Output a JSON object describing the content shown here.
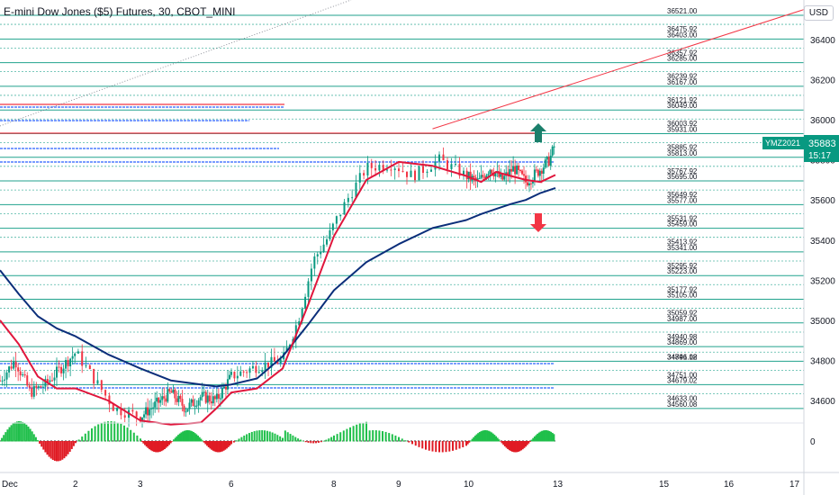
{
  "header": {
    "symbol_title": "E-mini Dow Jones ($5) Futures, 30, CBOT_MINI",
    "currency_button": "USD"
  },
  "price_label": {
    "ticker": "YMZ2021",
    "price": "35883",
    "countdown": "15:17",
    "color": "#089981"
  },
  "colors": {
    "level_line": "#089981",
    "blue_line": "#2962ff",
    "red_line": "#f23645",
    "ema_fast": "#e0163c",
    "ema_slow": "#0b2e7a",
    "candle_up": "#089981",
    "candle_down": "#f23645",
    "osc_up": "#1fbf4a",
    "osc_down": "#e01b24"
  },
  "arrows": {
    "up_icon": "arrow-up-icon",
    "down_icon": "arrow-down-icon"
  },
  "chart_data": {
    "type": "candlestick",
    "title": "E-mini Dow Jones ($5) Futures, 30, CBOT_MINI",
    "ylim": [
      34500,
      36550
    ],
    "y_ticks": [
      {
        "value": 36400,
        "label": "36400"
      },
      {
        "value": 36200,
        "label": "36200"
      },
      {
        "value": 36000,
        "label": "36000"
      },
      {
        "value": 35800,
        "label": "35800"
      },
      {
        "value": 35600,
        "label": "35600"
      },
      {
        "value": 35400,
        "label": "35400"
      },
      {
        "value": 35200,
        "label": "35200"
      },
      {
        "value": 35000,
        "label": "35000"
      },
      {
        "value": 34800,
        "label": "34800"
      },
      {
        "value": 34600,
        "label": "34600"
      }
    ],
    "x_ticks": [
      {
        "day": 0,
        "label": "Dec"
      },
      {
        "day": 2,
        "label": "2"
      },
      {
        "day": 3,
        "label": "3"
      },
      {
        "day": 6,
        "label": "6"
      },
      {
        "day": 8,
        "label": "8"
      },
      {
        "day": 9,
        "label": "9"
      },
      {
        "day": 10,
        "label": "10"
      },
      {
        "day": 13,
        "label": "13"
      },
      {
        "day": 15,
        "label": "15"
      },
      {
        "day": 16,
        "label": "16"
      },
      {
        "day": 17,
        "label": "17"
      }
    ],
    "oscillator_label": "0",
    "levels": [
      {
        "value": 36521.0,
        "label": "36521.00"
      },
      {
        "value": 36475.92,
        "label": "36475.92"
      },
      {
        "value": 36403.0,
        "label": "36403.00"
      },
      {
        "value": 36357.92,
        "label": "36357.92"
      },
      {
        "value": 36285.0,
        "label": "36285.00"
      },
      {
        "value": 36239.92,
        "label": "36239.92"
      },
      {
        "value": 36167.0,
        "label": "36167.00"
      },
      {
        "value": 36121.92,
        "label": "36121.92"
      },
      {
        "value": 36049.0,
        "label": "36049.00"
      },
      {
        "value": 36003.92,
        "label": "36003.92"
      },
      {
        "value": 35931.0,
        "label": "35931.00"
      },
      {
        "value": 35885.92,
        "label": "35885.92"
      },
      {
        "value": 35813.0,
        "label": "35813.00"
      },
      {
        "value": 35767.92,
        "label": "35767.92"
      },
      {
        "value": 35695.0,
        "label": "35695.00"
      },
      {
        "value": 35649.92,
        "label": "35649.92"
      },
      {
        "value": 35577.0,
        "label": "35577.00"
      },
      {
        "value": 35531.92,
        "label": "35531.92"
      },
      {
        "value": 35459.0,
        "label": "35459.00"
      },
      {
        "value": 35413.92,
        "label": "35413.92"
      },
      {
        "value": 35341.0,
        "label": "35341.00"
      },
      {
        "value": 35295.92,
        "label": "35295.92"
      },
      {
        "value": 35223.0,
        "label": "35223.00"
      },
      {
        "value": 35177.92,
        "label": "35177.92"
      },
      {
        "value": 35105.0,
        "label": "35105.00"
      },
      {
        "value": 35059.92,
        "label": "35059.92"
      },
      {
        "value": 34987.0,
        "label": "34987.00"
      },
      {
        "value": 34940.98,
        "label": "34940.98"
      },
      {
        "value": 34869.0,
        "label": "34869.00"
      },
      {
        "value": 34841.12,
        "label": "34841.12"
      },
      {
        "value": 34796.08,
        "label": "34796.08"
      },
      {
        "value": 34751.0,
        "label": "34751.00"
      },
      {
        "value": 34679.02,
        "label": "34679.02"
      },
      {
        "value": 34633.0,
        "label": "34633.00"
      },
      {
        "value": 34560.08,
        "label": "34560.08"
      }
    ],
    "trendline": {
      "from": {
        "day": 9.5,
        "value": 35955
      },
      "to": {
        "day": 17.3,
        "value": 36560
      }
    },
    "ema_fast": [
      [
        0.0,
        35000
      ],
      [
        0.5,
        34880
      ],
      [
        1.0,
        34720
      ],
      [
        1.5,
        34660
      ],
      [
        2.0,
        34660
      ],
      [
        2.5,
        34600
      ],
      [
        3.0,
        34500
      ],
      [
        4.0,
        34480
      ],
      [
        5.0,
        34490
      ],
      [
        5.5,
        34560
      ],
      [
        6.0,
        34640
      ],
      [
        6.5,
        34660
      ],
      [
        7.0,
        34760
      ],
      [
        7.5,
        35080
      ],
      [
        8.0,
        35420
      ],
      [
        8.5,
        35700
      ],
      [
        9.0,
        35790
      ],
      [
        9.5,
        35770
      ],
      [
        10.0,
        35720
      ],
      [
        10.5,
        35690
      ],
      [
        11.0,
        35740
      ],
      [
        11.5,
        35720
      ],
      [
        12.0,
        35700
      ],
      [
        12.5,
        35690
      ],
      [
        13.0,
        35725
      ]
    ],
    "ema_slow": [
      [
        0.0,
        35250
      ],
      [
        0.5,
        35130
      ],
      [
        1.0,
        35020
      ],
      [
        1.5,
        34960
      ],
      [
        2.0,
        34920
      ],
      [
        2.5,
        34830
      ],
      [
        3.0,
        34760
      ],
      [
        4.0,
        34700
      ],
      [
        5.0,
        34680
      ],
      [
        5.5,
        34670
      ],
      [
        6.0,
        34680
      ],
      [
        6.5,
        34710
      ],
      [
        7.0,
        34820
      ],
      [
        7.5,
        34980
      ],
      [
        8.0,
        35150
      ],
      [
        8.5,
        35290
      ],
      [
        9.0,
        35380
      ],
      [
        9.5,
        35460
      ],
      [
        10.0,
        35500
      ],
      [
        10.5,
        35530
      ],
      [
        11.0,
        35555
      ],
      [
        11.5,
        35580
      ],
      [
        12.0,
        35600
      ],
      [
        12.5,
        35635
      ],
      [
        13.0,
        35660
      ]
    ],
    "price_path": [
      [
        0.0,
        34700
      ],
      [
        0.4,
        34800
      ],
      [
        0.8,
        34640
      ],
      [
        1.2,
        34680
      ],
      [
        1.6,
        34760
      ],
      [
        2.0,
        34840
      ],
      [
        2.3,
        34700
      ],
      [
        2.6,
        34560
      ],
      [
        3.0,
        34520
      ],
      [
        3.5,
        34580
      ],
      [
        4.0,
        34640
      ],
      [
        4.5,
        34560
      ],
      [
        5.0,
        34620
      ],
      [
        5.5,
        34600
      ],
      [
        6.0,
        34720
      ],
      [
        6.5,
        34770
      ],
      [
        7.0,
        34800
      ],
      [
        7.3,
        35000
      ],
      [
        7.6,
        35300
      ],
      [
        7.9,
        35420
      ],
      [
        8.2,
        35600
      ],
      [
        8.5,
        35760
      ],
      [
        8.9,
        35780
      ],
      [
        9.2,
        35720
      ],
      [
        9.6,
        35800
      ],
      [
        10.0,
        35720
      ],
      [
        10.4,
        35690
      ],
      [
        10.8,
        35760
      ],
      [
        11.2,
        35700
      ],
      [
        11.6,
        35760
      ],
      [
        12.0,
        35690
      ],
      [
        12.4,
        35740
      ],
      [
        12.8,
        35800
      ],
      [
        13.0,
        35883
      ]
    ]
  }
}
